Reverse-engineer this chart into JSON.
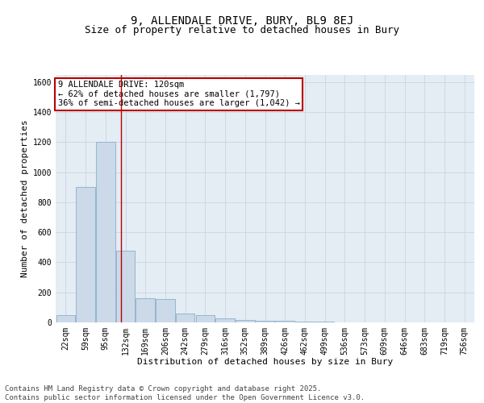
{
  "title1": "9, ALLENDALE DRIVE, BURY, BL9 8EJ",
  "title2": "Size of property relative to detached houses in Bury",
  "xlabel": "Distribution of detached houses by size in Bury",
  "ylabel": "Number of detached properties",
  "categories": [
    "22sqm",
    "59sqm",
    "95sqm",
    "132sqm",
    "169sqm",
    "206sqm",
    "242sqm",
    "279sqm",
    "316sqm",
    "352sqm",
    "389sqm",
    "426sqm",
    "462sqm",
    "499sqm",
    "536sqm",
    "573sqm",
    "609sqm",
    "646sqm",
    "683sqm",
    "719sqm",
    "756sqm"
  ],
  "values": [
    50,
    900,
    1200,
    475,
    160,
    155,
    60,
    50,
    25,
    15,
    10,
    10,
    5,
    3,
    2,
    1,
    1,
    1,
    0,
    0,
    0
  ],
  "bar_color": "#ccd9e8",
  "bar_edge_color": "#8aafc8",
  "red_line_x": 2.77,
  "annotation_line1": "9 ALLENDALE DRIVE: 120sqm",
  "annotation_line2": "← 62% of detached houses are smaller (1,797)",
  "annotation_line3": "36% of semi-detached houses are larger (1,042) →",
  "annotation_box_color": "#ffffff",
  "annotation_box_edge_color": "#bb0000",
  "grid_color": "#ccd5e0",
  "background_color": "#e4ecf4",
  "ylim": [
    0,
    1650
  ],
  "yticks": [
    0,
    200,
    400,
    600,
    800,
    1000,
    1200,
    1400,
    1600
  ],
  "footer": "Contains HM Land Registry data © Crown copyright and database right 2025.\nContains public sector information licensed under the Open Government Licence v3.0.",
  "title_fontsize": 10,
  "subtitle_fontsize": 9,
  "axis_fontsize": 8,
  "tick_fontsize": 7,
  "annotation_fontsize": 7.5,
  "footer_fontsize": 6.5
}
